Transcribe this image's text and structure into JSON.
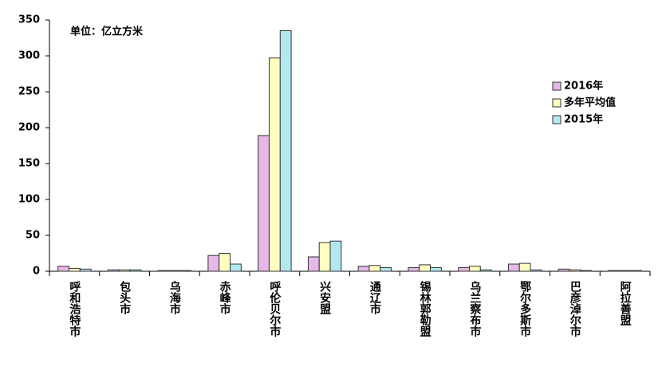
{
  "chart_data": {
    "type": "bar",
    "annotation": "单位：亿立方米",
    "categories": [
      "呼和浩特市",
      "包头市",
      "乌海市",
      "赤峰市",
      "呼伦贝尔市",
      "兴安盟",
      "通辽市",
      "锡林郭勒盟",
      "乌兰察布市",
      "鄂尔多斯市",
      "巴彦淖尔市",
      "阿拉善盟"
    ],
    "series": [
      {
        "name": "2016年",
        "color": "#e6b8e6",
        "values": [
          7,
          2,
          1,
          22,
          189,
          20,
          7,
          5,
          5,
          10,
          3,
          1
        ]
      },
      {
        "name": "多年平均值",
        "color": "#ffffc0",
        "values": [
          4,
          2,
          1,
          25,
          297,
          40,
          8,
          9,
          7,
          11,
          2,
          1
        ]
      },
      {
        "name": "2015年",
        "color": "#b4e8f0",
        "values": [
          3,
          2,
          1,
          10,
          335,
          42,
          5,
          5,
          2,
          2,
          1,
          1
        ]
      }
    ],
    "ylim": [
      0,
      350
    ],
    "yticks": [
      0,
      50,
      100,
      150,
      200,
      250,
      300,
      350
    ],
    "legend": "right"
  }
}
